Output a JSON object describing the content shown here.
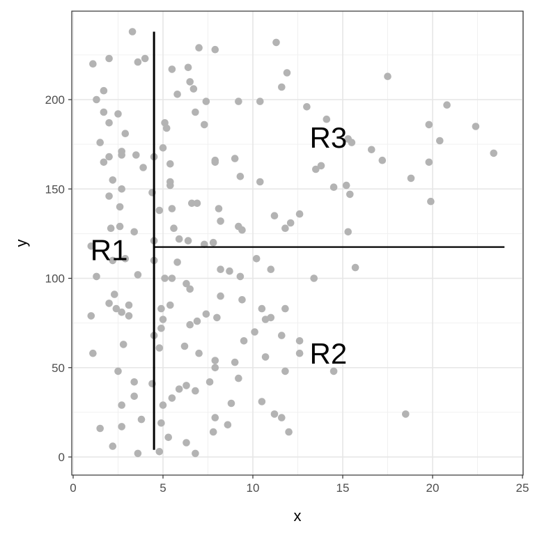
{
  "chart_data": {
    "type": "scatter",
    "title": "",
    "xlabel": "x",
    "ylabel": "y",
    "xlim": [
      0,
      25
    ],
    "ylim": [
      0,
      240
    ],
    "grid": true,
    "x_ticks": [
      0,
      5,
      10,
      15,
      20,
      25
    ],
    "y_ticks": [
      0,
      50,
      100,
      150,
      200
    ],
    "point_color": "#b3b3b3",
    "split_line_color": "#000000",
    "splits": {
      "vertical": {
        "x": 4.5,
        "y_from": 4,
        "y_to": 238
      },
      "horizontal": {
        "y": 117.5,
        "x_from": 4.5,
        "x_to": 24
      }
    },
    "region_labels": [
      {
        "text": "R1",
        "x": 2.0,
        "y": 116
      },
      {
        "text": "R2",
        "x": 14.2,
        "y": 58
      },
      {
        "text": "R3",
        "x": 14.2,
        "y": 179
      }
    ],
    "points": [
      [
        3.3,
        238
      ],
      [
        1.1,
        220
      ],
      [
        2.0,
        223
      ],
      [
        4.0,
        223
      ],
      [
        3.6,
        221
      ],
      [
        11.3,
        232
      ],
      [
        7.0,
        229
      ],
      [
        7.9,
        228
      ],
      [
        1.7,
        205
      ],
      [
        1.3,
        200
      ],
      [
        11.9,
        215
      ],
      [
        17.5,
        213
      ],
      [
        5.5,
        217
      ],
      [
        6.4,
        218
      ],
      [
        6.7,
        206
      ],
      [
        6.5,
        210
      ],
      [
        5.8,
        203
      ],
      [
        11.6,
        207
      ],
      [
        2.5,
        192
      ],
      [
        1.7,
        193
      ],
      [
        2.0,
        187
      ],
      [
        2.9,
        181
      ],
      [
        5.1,
        187
      ],
      [
        5.2,
        184
      ],
      [
        6.8,
        193
      ],
      [
        7.4,
        199
      ],
      [
        7.3,
        186
      ],
      [
        9.2,
        199
      ],
      [
        10.4,
        199
      ],
      [
        13.0,
        196
      ],
      [
        14.1,
        189
      ],
      [
        19.8,
        186
      ],
      [
        20.8,
        197
      ],
      [
        22.4,
        185
      ],
      [
        20.4,
        177
      ],
      [
        16.6,
        172
      ],
      [
        17.2,
        166
      ],
      [
        15.3,
        178
      ],
      [
        15.5,
        176
      ],
      [
        23.4,
        170
      ],
      [
        19.8,
        165
      ],
      [
        18.8,
        156
      ],
      [
        13.5,
        161
      ],
      [
        13.8,
        163
      ],
      [
        14.5,
        151
      ],
      [
        15.2,
        152
      ],
      [
        15.4,
        147
      ],
      [
        1.5,
        176
      ],
      [
        2.0,
        168
      ],
      [
        1.7,
        165
      ],
      [
        2.7,
        171
      ],
      [
        2.7,
        169
      ],
      [
        3.5,
        169
      ],
      [
        3.9,
        162
      ],
      [
        4.5,
        168
      ],
      [
        5.0,
        173
      ],
      [
        5.4,
        164
      ],
      [
        7.9,
        166
      ],
      [
        7.9,
        165
      ],
      [
        9.0,
        167
      ],
      [
        2.2,
        155
      ],
      [
        2.7,
        150
      ],
      [
        4.4,
        148
      ],
      [
        5.4,
        154
      ],
      [
        5.4,
        152
      ],
      [
        9.3,
        157
      ],
      [
        10.4,
        154
      ],
      [
        2.0,
        146
      ],
      [
        2.6,
        140
      ],
      [
        6.6,
        142
      ],
      [
        6.9,
        142
      ],
      [
        5.5,
        139
      ],
      [
        4.8,
        138
      ],
      [
        8.1,
        139
      ],
      [
        8.2,
        132
      ],
      [
        12.6,
        136
      ],
      [
        11.2,
        135
      ],
      [
        12.1,
        131
      ],
      [
        11.8,
        128
      ],
      [
        15.3,
        126
      ],
      [
        19.9,
        143
      ],
      [
        2.1,
        128
      ],
      [
        2.6,
        129
      ],
      [
        3.4,
        126
      ],
      [
        5.6,
        128
      ],
      [
        9.2,
        129
      ],
      [
        9.4,
        127
      ],
      [
        4.5,
        121
      ],
      [
        5.9,
        122
      ],
      [
        6.4,
        121
      ],
      [
        7.3,
        119
      ],
      [
        7.8,
        120
      ],
      [
        1.0,
        118
      ],
      [
        2.2,
        110
      ],
      [
        2.9,
        111
      ],
      [
        4.5,
        110
      ],
      [
        5.8,
        109
      ],
      [
        10.2,
        111
      ],
      [
        8.2,
        105
      ],
      [
        8.7,
        104
      ],
      [
        9.3,
        101
      ],
      [
        11.0,
        105
      ],
      [
        13.4,
        100
      ],
      [
        15.7,
        106
      ],
      [
        1.3,
        101
      ],
      [
        3.6,
        102
      ],
      [
        5.1,
        100
      ],
      [
        5.5,
        100
      ],
      [
        6.3,
        97
      ],
      [
        6.5,
        94
      ],
      [
        2.3,
        91
      ],
      [
        2.0,
        86
      ],
      [
        2.4,
        83
      ],
      [
        3.1,
        85
      ],
      [
        2.7,
        81
      ],
      [
        3.1,
        79
      ],
      [
        1.0,
        79
      ],
      [
        4.9,
        83
      ],
      [
        5.0,
        77
      ],
      [
        5.4,
        85
      ],
      [
        6.9,
        76
      ],
      [
        7.4,
        80
      ],
      [
        8.2,
        90
      ],
      [
        9.4,
        88
      ],
      [
        8.0,
        78
      ],
      [
        10.5,
        83
      ],
      [
        10.7,
        77
      ],
      [
        11.0,
        78
      ],
      [
        11.8,
        83
      ],
      [
        6.5,
        74
      ],
      [
        4.9,
        72
      ],
      [
        4.5,
        68
      ],
      [
        4.8,
        61
      ],
      [
        6.2,
        62
      ],
      [
        7.0,
        58
      ],
      [
        7.9,
        54
      ],
      [
        7.9,
        50
      ],
      [
        9.0,
        53
      ],
      [
        9.5,
        65
      ],
      [
        10.1,
        70
      ],
      [
        10.7,
        56
      ],
      [
        11.6,
        68
      ],
      [
        12.6,
        65
      ],
      [
        12.6,
        58
      ],
      [
        14.5,
        48
      ],
      [
        1.1,
        58
      ],
      [
        2.8,
        63
      ],
      [
        2.5,
        48
      ],
      [
        3.4,
        42
      ],
      [
        4.4,
        41
      ],
      [
        3.4,
        34
      ],
      [
        2.7,
        29
      ],
      [
        5.0,
        29
      ],
      [
        5.5,
        33
      ],
      [
        5.9,
        38
      ],
      [
        6.3,
        40
      ],
      [
        6.8,
        37
      ],
      [
        7.6,
        42
      ],
      [
        9.2,
        44
      ],
      [
        8.8,
        30
      ],
      [
        10.5,
        31
      ],
      [
        11.8,
        48
      ],
      [
        1.5,
        16
      ],
      [
        2.2,
        6
      ],
      [
        2.7,
        17
      ],
      [
        3.8,
        21
      ],
      [
        4.9,
        19
      ],
      [
        5.3,
        11
      ],
      [
        6.3,
        8
      ],
      [
        7.9,
        22
      ],
      [
        8.6,
        18
      ],
      [
        7.8,
        14
      ],
      [
        11.2,
        24
      ],
      [
        11.6,
        22
      ],
      [
        12.0,
        14
      ],
      [
        18.5,
        24
      ],
      [
        3.6,
        2
      ],
      [
        4.8,
        3
      ],
      [
        6.8,
        2
      ]
    ]
  }
}
